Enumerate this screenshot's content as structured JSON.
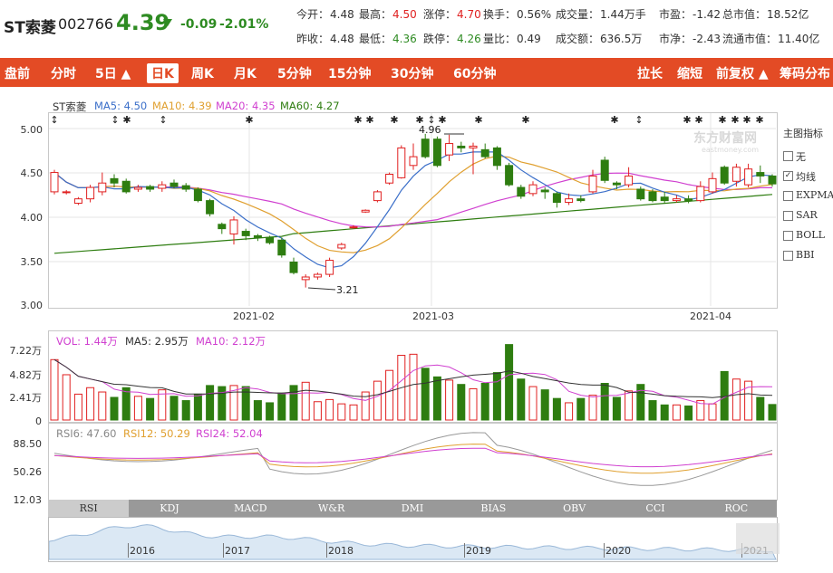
{
  "header": {
    "name": "ST索菱",
    "code": "002766",
    "price": "4.39",
    "change": "-0.09",
    "change_pct": "-2.01%",
    "quotes": [
      {
        "label": "今开：",
        "value": "4.48",
        "color": "#333"
      },
      {
        "label": "最高：",
        "value": "4.50",
        "color": "#e02020"
      },
      {
        "label": "涨停：",
        "value": "4.70",
        "color": "#e02020"
      },
      {
        "label": "换手：",
        "value": "0.56%",
        "color": "#333"
      },
      {
        "label": "成交量：",
        "value": "1.44万手",
        "color": "#333"
      },
      {
        "label": "市盈：",
        "value": "-1.42",
        "color": "#333"
      },
      {
        "label": "总市值：",
        "value": "18.52亿",
        "color": "#333"
      },
      {
        "label": "昨收：",
        "value": "4.48",
        "color": "#333"
      },
      {
        "label": "最低：",
        "value": "4.36",
        "color": "#2e8b22"
      },
      {
        "label": "跌停：",
        "value": "4.26",
        "color": "#2e8b22"
      },
      {
        "label": "量比：",
        "value": "0.49",
        "color": "#333"
      },
      {
        "label": "成交额：",
        "value": "636.5万",
        "color": "#333"
      },
      {
        "label": "市净：",
        "value": "-2.43",
        "color": "#333"
      },
      {
        "label": "流通市值：",
        "value": "11.40亿",
        "color": "#333"
      }
    ]
  },
  "toolbar": {
    "left": [
      "盘前",
      "分时",
      "5日 ▲",
      "日K",
      "周K",
      "月K",
      "5分钟",
      "15分钟",
      "30分钟",
      "60分钟"
    ],
    "active": "日K",
    "right": [
      "拉长",
      "缩短",
      "前复权 ▲",
      "筹码分布"
    ]
  },
  "legend": {
    "name": "ST索菱",
    "items": [
      {
        "text": "MA5: 4.50",
        "color": "#3b6fc9"
      },
      {
        "text": "MA10: 4.39",
        "color": "#e0a030"
      },
      {
        "text": "MA20: 4.35",
        "color": "#d040d0"
      },
      {
        "text": "MA60: 4.27",
        "color": "#2e7d10"
      }
    ]
  },
  "kline": {
    "y_labels": [
      "5.00",
      "4.50",
      "4.00",
      "3.50",
      "3.00"
    ],
    "x_labels": [
      "2021-02",
      "2021-03",
      "2021-04"
    ],
    "annot_high": "4.96",
    "annot_low": "3.21",
    "watermark": "东方财富网",
    "watermark_sub": "eastmoney.com"
  },
  "side_panel": {
    "title": "主图指标",
    "options": [
      {
        "label": "无",
        "checked": false
      },
      {
        "label": "均线",
        "checked": true
      },
      {
        "label": "EXPMA",
        "checked": false
      },
      {
        "label": "SAR",
        "checked": false
      },
      {
        "label": "BOLL",
        "checked": false
      },
      {
        "label": "BBI",
        "checked": false
      }
    ]
  },
  "volume": {
    "legend": [
      {
        "text": "VOL: 1.44万",
        "color": "#d040d0"
      },
      {
        "text": "MA5: 2.95万",
        "color": "#333"
      },
      {
        "text": "MA10: 2.12万",
        "color": "#d040d0"
      }
    ],
    "y_labels": [
      "7.22万",
      "4.82万",
      "2.41万",
      "0"
    ]
  },
  "rsi": {
    "legend": [
      {
        "text": "RSI6: 47.60",
        "color": "#888"
      },
      {
        "text": "RSI12: 50.29",
        "color": "#e0a030"
      },
      {
        "text": "RSI24: 52.04",
        "color": "#d040d0"
      }
    ],
    "y_labels": [
      "88.50",
      "50.26",
      "12.03"
    ]
  },
  "indicator_tabs": [
    "RSI",
    "KDJ",
    "MACD",
    "W&R",
    "DMI",
    "BIAS",
    "OBV",
    "CCI",
    "ROC"
  ],
  "active_tab": "RSI",
  "timeline_years": [
    "2016",
    "2017",
    "2018",
    "2019",
    "2020",
    "2021"
  ],
  "colors": {
    "up": "#e02020",
    "down": "#2e7d10",
    "accent": "#e34b25"
  }
}
